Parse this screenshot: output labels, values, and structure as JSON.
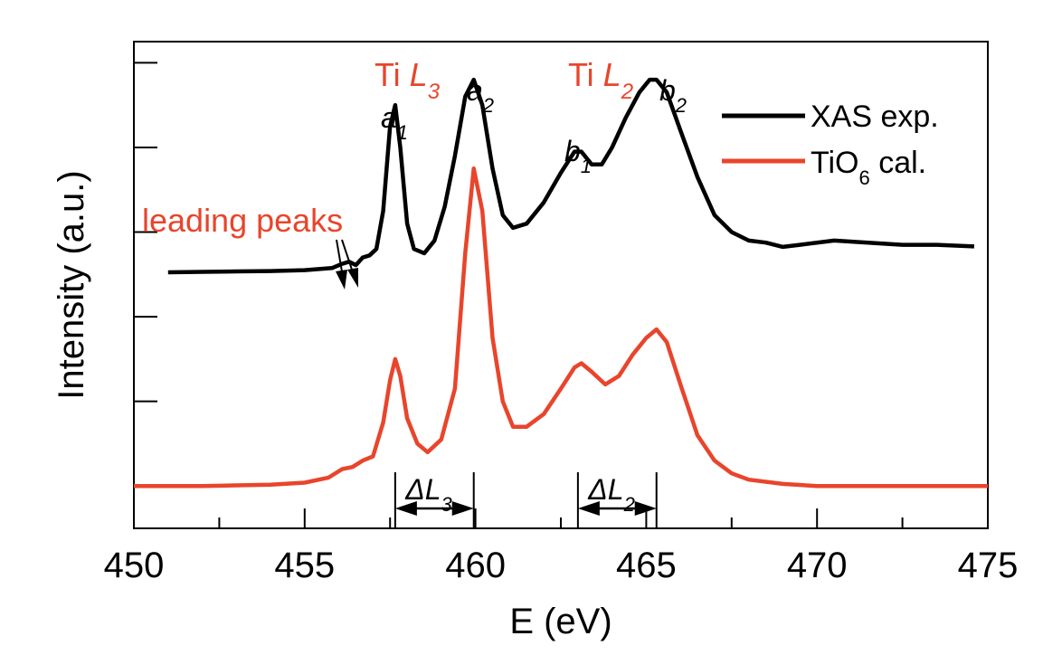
{
  "chart_data": {
    "type": "line",
    "xlabel": "E (eV)",
    "ylabel": "Intensity (a.u.)",
    "xlim": [
      450,
      475
    ],
    "ylim": [
      0,
      1.15
    ],
    "x_ticks": [
      "450",
      "455",
      "460",
      "465",
      "470",
      "475"
    ],
    "grid": false,
    "legend_position": "top-right",
    "colors": {
      "exp": "#000000",
      "cal": "#e8452c",
      "annotation": "#e8452c"
    },
    "series": [
      {
        "name": "XAS exp.",
        "x": [
          451.0,
          452.0,
          453.0,
          454.0,
          455.0,
          455.8,
          456.1,
          456.3,
          456.5,
          456.7,
          456.9,
          457.1,
          457.3,
          457.5,
          457.65,
          457.8,
          458.0,
          458.2,
          458.5,
          458.8,
          459.1,
          459.4,
          459.7,
          459.95,
          460.2,
          460.5,
          460.8,
          461.1,
          461.5,
          462.0,
          462.5,
          462.9,
          463.1,
          463.4,
          463.7,
          464.0,
          464.4,
          464.8,
          465.1,
          465.3,
          465.6,
          466.0,
          466.5,
          467.0,
          467.5,
          468.0,
          468.5,
          469.0,
          469.5,
          470.5,
          471.5,
          472.5,
          473.5,
          474.6
        ],
        "y": [
          0.605,
          0.606,
          0.607,
          0.608,
          0.61,
          0.615,
          0.625,
          0.63,
          0.622,
          0.64,
          0.645,
          0.66,
          0.75,
          0.95,
          1.0,
          0.9,
          0.72,
          0.66,
          0.65,
          0.68,
          0.76,
          0.88,
          1.02,
          1.06,
          1.0,
          0.85,
          0.74,
          0.71,
          0.72,
          0.77,
          0.84,
          0.89,
          0.89,
          0.86,
          0.86,
          0.9,
          0.97,
          1.03,
          1.06,
          1.06,
          1.03,
          0.94,
          0.83,
          0.74,
          0.7,
          0.68,
          0.675,
          0.665,
          0.67,
          0.68,
          0.675,
          0.67,
          0.67,
          0.666
        ]
      },
      {
        "name": "TiO6 cal.",
        "x": [
          450.0,
          452.0,
          454.0,
          455.0,
          455.7,
          456.1,
          456.4,
          456.7,
          457.0,
          457.3,
          457.5,
          457.65,
          457.8,
          458.0,
          458.3,
          458.6,
          459.0,
          459.4,
          459.7,
          459.95,
          460.2,
          460.5,
          460.8,
          461.1,
          461.5,
          462.0,
          462.5,
          462.9,
          463.1,
          463.4,
          463.8,
          464.2,
          464.6,
          465.0,
          465.3,
          465.6,
          466.0,
          466.5,
          467.0,
          467.5,
          468.0,
          469.0,
          470.0,
          472.0,
          475.0
        ],
        "y": [
          0.1,
          0.1,
          0.103,
          0.108,
          0.12,
          0.14,
          0.145,
          0.16,
          0.17,
          0.25,
          0.35,
          0.4,
          0.36,
          0.26,
          0.2,
          0.18,
          0.21,
          0.33,
          0.65,
          0.85,
          0.75,
          0.45,
          0.3,
          0.24,
          0.24,
          0.27,
          0.33,
          0.38,
          0.39,
          0.37,
          0.34,
          0.36,
          0.41,
          0.45,
          0.47,
          0.44,
          0.34,
          0.22,
          0.16,
          0.13,
          0.115,
          0.105,
          0.1,
          0.1,
          0.1
        ]
      }
    ],
    "annotations": {
      "ti_l3": "Ti L3",
      "ti_l2": "Ti L2",
      "leading_peaks": "leading peaks",
      "a1": "a1",
      "a2": "a2",
      "b1": "b1",
      "b2": "b2",
      "delta_l3": "ΔL3",
      "delta_l2": "ΔL2",
      "legend_exp": "XAS exp.",
      "legend_cal": "TiO6 cal."
    },
    "peaks": {
      "a1": 457.65,
      "a2": 459.95,
      "b1": 463.0,
      "b2": 465.3
    }
  }
}
